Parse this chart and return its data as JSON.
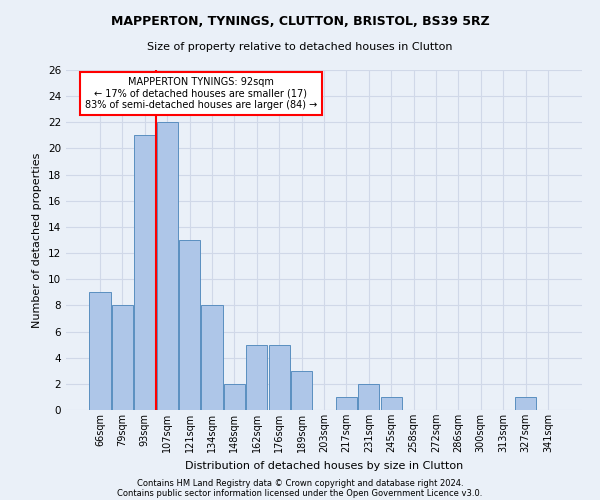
{
  "title1": "MAPPERTON, TYNINGS, CLUTTON, BRISTOL, BS39 5RZ",
  "title2": "Size of property relative to detached houses in Clutton",
  "xlabel": "Distribution of detached houses by size in Clutton",
  "ylabel": "Number of detached properties",
  "footer1": "Contains HM Land Registry data © Crown copyright and database right 2024.",
  "footer2": "Contains public sector information licensed under the Open Government Licence v3.0.",
  "categories": [
    "66sqm",
    "79sqm",
    "93sqm",
    "107sqm",
    "121sqm",
    "134sqm",
    "148sqm",
    "162sqm",
    "176sqm",
    "189sqm",
    "203sqm",
    "217sqm",
    "231sqm",
    "245sqm",
    "258sqm",
    "272sqm",
    "286sqm",
    "300sqm",
    "313sqm",
    "327sqm",
    "341sqm"
  ],
  "values": [
    9,
    8,
    21,
    22,
    13,
    8,
    2,
    5,
    5,
    3,
    0,
    1,
    2,
    1,
    0,
    0,
    0,
    0,
    0,
    1,
    0
  ],
  "bar_color": "#aec6e8",
  "bar_edge_color": "#5a8fc0",
  "annotation_text": "MAPPERTON TYNINGS: 92sqm\n← 17% of detached houses are smaller (17)\n83% of semi-detached houses are larger (84) →",
  "annotation_box_color": "white",
  "annotation_box_edge_color": "red",
  "ylim": [
    0,
    26
  ],
  "yticks": [
    0,
    2,
    4,
    6,
    8,
    10,
    12,
    14,
    16,
    18,
    20,
    22,
    24,
    26
  ],
  "grid_color": "#d0d8e8",
  "background_color": "#eaf0f8",
  "vline_color": "red",
  "vline_x_index": 2
}
